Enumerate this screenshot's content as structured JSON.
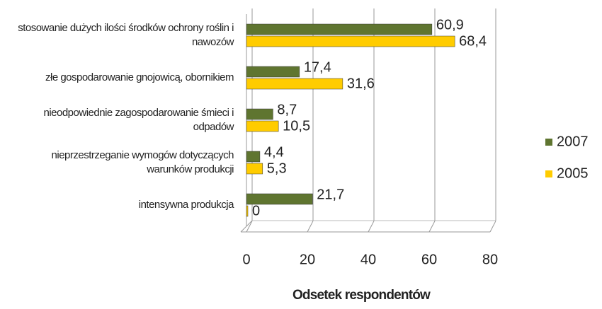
{
  "chart_data": {
    "type": "bar",
    "orientation": "horizontal",
    "categories": [
      "stosowanie dużych ilości środków ochrony roślin i nawozów",
      "złe gospodarowanie gnojowicą, obornikiem",
      "nieodpowiednie zagospodarowanie śmieci i odpadów",
      "nieprzestrzeganie wymogów dotyczących warunków produkcji",
      "intensywna produkcja"
    ],
    "series": [
      {
        "name": "2007",
        "color": "#5f7530",
        "values": [
          60.9,
          17.4,
          8.7,
          4.4,
          21.7
        ],
        "value_labels": [
          "60,9",
          "17,4",
          "8,7",
          "4,4",
          "21,7"
        ]
      },
      {
        "name": "2005",
        "color": "#ffcc00",
        "values": [
          68.4,
          31.6,
          10.5,
          5.3,
          0
        ],
        "value_labels": [
          "68,4",
          "31,6",
          "10,5",
          "5,3",
          "0"
        ]
      }
    ],
    "xlim": [
      0,
      80
    ],
    "xticks": [
      0,
      20,
      40,
      60,
      80
    ],
    "grid": true,
    "xlabel": "Odsetek respondentów",
    "legend": "right"
  }
}
